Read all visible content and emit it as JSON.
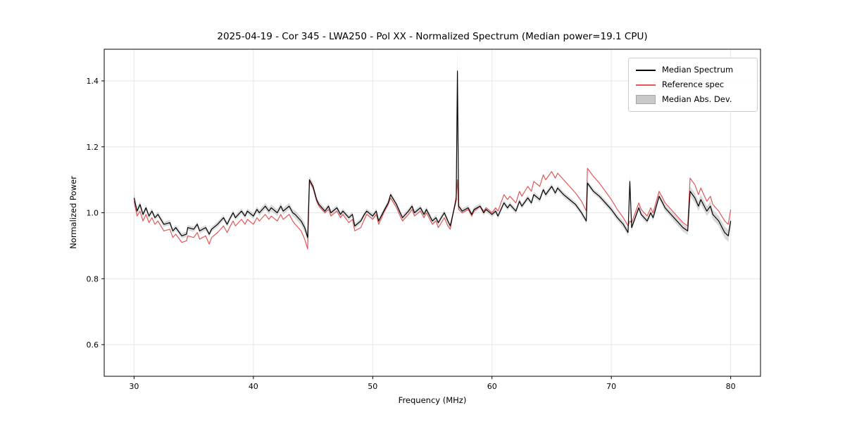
{
  "chart_data": {
    "type": "line",
    "title": "2025-04-19 - Cor 345 - LWA250 - Pol XX - Normalized Spectrum (Median power=19.1 CPU)",
    "xlabel": "Frequency (MHz)",
    "ylabel": "Normalized Power",
    "xlim": [
      27.5,
      82.5
    ],
    "ylim": [
      0.504,
      1.496
    ],
    "xticks": [
      30,
      40,
      50,
      60,
      70,
      80
    ],
    "yticks": [
      0.6,
      0.8,
      1.0,
      1.2,
      1.4
    ],
    "grid": true,
    "legend_position": "upper right",
    "x": [
      30.0,
      30.25,
      30.5,
      30.75,
      31.0,
      31.25,
      31.5,
      31.75,
      32.0,
      32.5,
      33.0,
      33.25,
      33.5,
      34.0,
      34.4,
      34.5,
      35.0,
      35.3,
      35.5,
      36.0,
      36.3,
      36.5,
      37.0,
      37.5,
      37.8,
      38.0,
      38.3,
      38.5,
      39.0,
      39.3,
      39.5,
      40.0,
      40.3,
      40.5,
      41.0,
      41.3,
      41.5,
      42.0,
      42.3,
      42.5,
      43.0,
      43.3,
      43.5,
      44.0,
      44.3,
      44.55,
      44.7,
      45.0,
      45.3,
      45.5,
      46.0,
      46.3,
      46.5,
      47.0,
      47.3,
      47.5,
      48.0,
      48.3,
      48.5,
      49.0,
      49.3,
      49.5,
      50.0,
      50.3,
      50.5,
      51.0,
      51.3,
      51.5,
      52.0,
      52.3,
      52.5,
      53.0,
      53.3,
      53.5,
      54.0,
      54.3,
      54.5,
      55.0,
      55.3,
      55.5,
      56.0,
      56.3,
      56.5,
      57.0,
      57.1,
      57.2,
      57.5,
      58.0,
      58.3,
      58.5,
      59.0,
      59.3,
      59.5,
      60.0,
      60.3,
      60.5,
      61.0,
      61.3,
      61.5,
      62.0,
      62.3,
      62.5,
      63.0,
      63.3,
      63.5,
      64.0,
      64.3,
      64.5,
      65.0,
      65.3,
      65.5,
      66.0,
      66.5,
      67.0,
      67.5,
      67.9,
      68.0,
      68.3,
      68.5,
      69.0,
      69.5,
      70.0,
      70.5,
      71.0,
      71.4,
      71.55,
      71.7,
      72.0,
      72.3,
      72.5,
      73.0,
      73.3,
      73.5,
      74.0,
      74.3,
      74.5,
      75.0,
      75.5,
      76.0,
      76.4,
      76.6,
      77.0,
      77.3,
      77.5,
      78.0,
      78.3,
      78.5,
      79.0,
      79.5,
      79.8,
      80.0
    ],
    "series": [
      {
        "name": "Median Spectrum",
        "color": "#000000",
        "values": [
          1.045,
          1.005,
          1.025,
          0.995,
          1.015,
          0.99,
          1.005,
          0.985,
          0.995,
          0.965,
          0.97,
          0.945,
          0.955,
          0.93,
          0.935,
          0.955,
          0.95,
          0.965,
          0.945,
          0.955,
          0.935,
          0.95,
          0.965,
          0.985,
          0.965,
          0.98,
          1.0,
          0.985,
          1.005,
          0.99,
          1.005,
          0.99,
          1.01,
          1.0,
          1.02,
          1.005,
          1.015,
          1.0,
          1.02,
          1.005,
          1.02,
          1.0,
          0.995,
          0.975,
          0.955,
          0.925,
          1.1,
          1.08,
          1.04,
          1.025,
          1.005,
          1.02,
          1.0,
          1.015,
          0.995,
          1.005,
          0.985,
          0.995,
          0.96,
          0.975,
          0.995,
          1.005,
          0.99,
          1.005,
          0.975,
          1.01,
          1.03,
          1.055,
          1.025,
          1.0,
          0.985,
          1.005,
          1.02,
          1.0,
          1.015,
          0.995,
          1.01,
          0.975,
          0.985,
          0.97,
          1.0,
          0.975,
          0.96,
          1.04,
          1.43,
          1.02,
          1.005,
          1.015,
          0.995,
          1.01,
          1.02,
          1.0,
          1.01,
          0.995,
          1.005,
          0.99,
          1.03,
          1.015,
          1.025,
          1.005,
          1.035,
          1.02,
          1.045,
          1.03,
          1.055,
          1.04,
          1.07,
          1.055,
          1.08,
          1.06,
          1.075,
          1.055,
          1.04,
          1.025,
          1.0,
          0.975,
          1.09,
          1.075,
          1.065,
          1.05,
          1.03,
          1.01,
          0.985,
          0.965,
          0.94,
          1.095,
          0.955,
          0.985,
          1.015,
          0.995,
          0.975,
          1.0,
          0.985,
          1.05,
          1.03,
          1.015,
          0.995,
          0.975,
          0.955,
          0.945,
          1.065,
          1.045,
          1.02,
          1.04,
          1.005,
          1.02,
          0.995,
          0.975,
          0.94,
          0.93,
          0.975
        ]
      },
      {
        "name": "Reference spec",
        "color": "#e15759",
        "values": [
          1.035,
          0.99,
          1.005,
          0.975,
          0.995,
          0.97,
          0.985,
          0.965,
          0.975,
          0.945,
          0.95,
          0.925,
          0.935,
          0.91,
          0.915,
          0.93,
          0.925,
          0.94,
          0.92,
          0.93,
          0.905,
          0.925,
          0.94,
          0.96,
          0.94,
          0.955,
          0.975,
          0.96,
          0.98,
          0.965,
          0.98,
          0.965,
          0.985,
          0.975,
          0.995,
          0.98,
          0.99,
          0.975,
          0.995,
          0.98,
          0.995,
          0.975,
          0.965,
          0.945,
          0.92,
          0.89,
          1.095,
          1.075,
          1.035,
          1.02,
          1.0,
          1.01,
          0.99,
          1.005,
          0.985,
          0.995,
          0.97,
          0.98,
          0.945,
          0.955,
          0.98,
          0.995,
          0.98,
          0.995,
          0.965,
          1.005,
          1.025,
          1.045,
          1.015,
          0.99,
          0.975,
          0.995,
          1.01,
          0.99,
          1.005,
          0.985,
          1.0,
          0.965,
          0.975,
          0.955,
          0.985,
          0.96,
          0.95,
          1.05,
          1.1,
          1.01,
          1.0,
          1.01,
          0.99,
          1.005,
          1.02,
          1.005,
          1.015,
          1.0,
          1.015,
          1.005,
          1.055,
          1.04,
          1.05,
          1.03,
          1.065,
          1.05,
          1.08,
          1.065,
          1.095,
          1.08,
          1.115,
          1.1,
          1.125,
          1.105,
          1.12,
          1.1,
          1.08,
          1.06,
          1.035,
          1.005,
          1.135,
          1.12,
          1.11,
          1.09,
          1.065,
          1.04,
          1.01,
          0.985,
          0.96,
          0.975,
          0.97,
          1.0,
          1.03,
          1.01,
          0.99,
          1.015,
          1.0,
          1.065,
          1.045,
          1.03,
          1.01,
          0.99,
          0.97,
          0.96,
          1.105,
          1.085,
          1.055,
          1.075,
          1.035,
          1.05,
          1.025,
          1.005,
          0.975,
          0.965,
          1.01
        ]
      }
    ],
    "band": {
      "name": "Median Abs. Dev.",
      "color": "#aaaaaa",
      "opacity": 0.45,
      "around_series": "Median Spectrum",
      "half_width": [
        0.018,
        0.012,
        0.01,
        0.009,
        0.009,
        0.008,
        0.008,
        0.008,
        0.008,
        0.008,
        0.008,
        0.008,
        0.008,
        0.008,
        0.008,
        0.008,
        0.008,
        0.008,
        0.008,
        0.008,
        0.008,
        0.008,
        0.008,
        0.008,
        0.008,
        0.008,
        0.008,
        0.008,
        0.008,
        0.008,
        0.008,
        0.009,
        0.009,
        0.009,
        0.01,
        0.01,
        0.01,
        0.01,
        0.01,
        0.01,
        0.01,
        0.01,
        0.012,
        0.012,
        0.014,
        0.015,
        0.012,
        0.01,
        0.009,
        0.009,
        0.009,
        0.008,
        0.008,
        0.008,
        0.008,
        0.008,
        0.008,
        0.008,
        0.008,
        0.008,
        0.008,
        0.008,
        0.008,
        0.008,
        0.008,
        0.008,
        0.008,
        0.008,
        0.008,
        0.008,
        0.008,
        0.008,
        0.008,
        0.008,
        0.008,
        0.008,
        0.008,
        0.008,
        0.008,
        0.008,
        0.008,
        0.008,
        0.008,
        0.01,
        0.07,
        0.01,
        0.008,
        0.008,
        0.008,
        0.008,
        0.008,
        0.008,
        0.008,
        0.008,
        0.008,
        0.008,
        0.008,
        0.008,
        0.008,
        0.008,
        0.008,
        0.008,
        0.008,
        0.008,
        0.008,
        0.008,
        0.008,
        0.008,
        0.008,
        0.008,
        0.008,
        0.008,
        0.008,
        0.008,
        0.008,
        0.008,
        0.008,
        0.008,
        0.008,
        0.008,
        0.009,
        0.009,
        0.009,
        0.01,
        0.01,
        0.02,
        0.01,
        0.009,
        0.009,
        0.009,
        0.009,
        0.009,
        0.009,
        0.01,
        0.01,
        0.01,
        0.01,
        0.012,
        0.012,
        0.012,
        0.015,
        0.015,
        0.015,
        0.015,
        0.015,
        0.015,
        0.015,
        0.015,
        0.018,
        0.018,
        0.015
      ]
    }
  }
}
